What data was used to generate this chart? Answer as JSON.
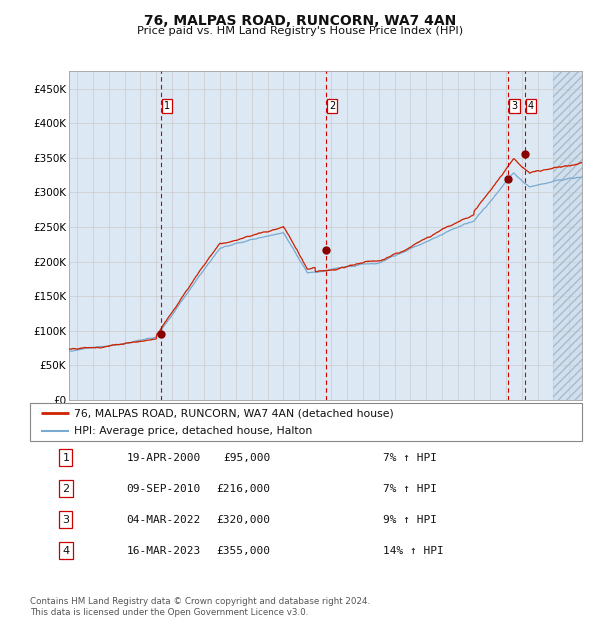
{
  "title": "76, MALPAS ROAD, RUNCORN, WA7 4AN",
  "subtitle": "Price paid vs. HM Land Registry's House Price Index (HPI)",
  "ylim": [
    0,
    475000
  ],
  "xlim_start": 1994.5,
  "xlim_end": 2026.8,
  "yticks": [
    0,
    50000,
    100000,
    150000,
    200000,
    250000,
    300000,
    350000,
    400000,
    450000
  ],
  "ytick_labels": [
    "£0",
    "£50K",
    "£100K",
    "£150K",
    "£200K",
    "£250K",
    "£300K",
    "£350K",
    "£400K",
    "£450K"
  ],
  "hpi_color": "#7aaad0",
  "price_color": "#cc2200",
  "bg_color": "#dce9f5",
  "grid_color": "#cccccc",
  "sale_marker_color": "#880000",
  "dashed_line_color": "#cc0000",
  "transactions": [
    {
      "label": "1",
      "date_decimal": 2000.3,
      "price": 95000,
      "date_str": "19-APR-2000",
      "price_str": "£95,000",
      "pct_str": "7% ↑ HPI"
    },
    {
      "label": "2",
      "date_decimal": 2010.69,
      "price": 216000,
      "date_str": "09-SEP-2010",
      "price_str": "£216,000",
      "pct_str": "7% ↑ HPI"
    },
    {
      "label": "3",
      "date_decimal": 2022.17,
      "price": 320000,
      "date_str": "04-MAR-2022",
      "price_str": "£320,000",
      "pct_str": "9% ↑ HPI"
    },
    {
      "label": "4",
      "date_decimal": 2023.21,
      "price": 355000,
      "date_str": "16-MAR-2023",
      "price_str": "£355,000",
      "pct_str": "14% ↑ HPI"
    }
  ],
  "legend_line1": "76, MALPAS ROAD, RUNCORN, WA7 4AN (detached house)",
  "legend_line2": "HPI: Average price, detached house, Halton",
  "footer": "Contains HM Land Registry data © Crown copyright and database right 2024.\nThis data is licensed under the Open Government Licence v3.0.",
  "table_rows": [
    [
      "1",
      "19-APR-2000",
      "£95,000",
      "7% ↑ HPI"
    ],
    [
      "2",
      "09-SEP-2010",
      "£216,000",
      "7% ↑ HPI"
    ],
    [
      "3",
      "04-MAR-2022",
      "£320,000",
      "9% ↑ HPI"
    ],
    [
      "4",
      "16-MAR-2023",
      "£355,000",
      "14% ↑ HPI"
    ]
  ],
  "future_start": 2025.0
}
